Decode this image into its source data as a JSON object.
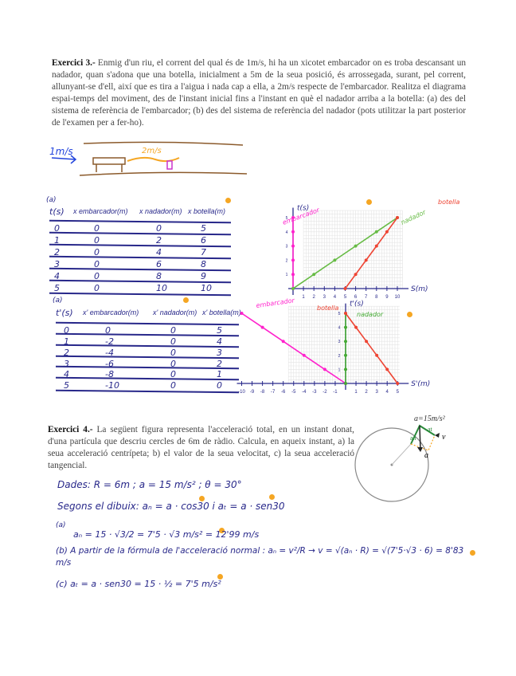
{
  "exercise3": {
    "label": "Exercici 3.-",
    "text": "Enmig d'un riu, el corrent del qual és de 1m/s, hi ha un xicotet embarcador on es troba descansant un nadador, quan s'adona que una botella, inicialment a 5m de la seua posició, és arrossegada, surant, pel corrent, allunyant-se d'ell, així que es tira a l'aigua i nada cap a ella, a 2m/s respecte de l'embarcador. Realitza el diagrama espai-temps del moviment, des de l'instant inicial fins a l'instant en què el nadador arriba a la botella: (a) des del sistema de referència de l'embarcador; (b) des del sistema de referència del nadador (pots utilitzar la part posterior de l'examen per a fer-ho).",
    "sketch": {
      "current_label": "1m/s",
      "swim_label": "2m/s"
    },
    "table_a": {
      "tag": "(a)",
      "headers": [
        "t(s)",
        "x embarcador(m)",
        "x nadador(m)",
        "x botella(m)"
      ],
      "rows": [
        [
          "0",
          "0",
          "0",
          "5"
        ],
        [
          "1",
          "0",
          "2",
          "6"
        ],
        [
          "2",
          "0",
          "4",
          "7"
        ],
        [
          "3",
          "0",
          "6",
          "8"
        ],
        [
          "4",
          "0",
          "8",
          "9"
        ],
        [
          "5",
          "0",
          "10",
          "10"
        ]
      ]
    },
    "table_b": {
      "tag": "(a)",
      "headers": [
        "t'(s)",
        "x' embarcador(m)",
        "x' nadador(m)",
        "x' botella(m)"
      ],
      "rows": [
        [
          "0",
          "0",
          "0",
          "5"
        ],
        [
          "1",
          "-2",
          "0",
          "4"
        ],
        [
          "2",
          "-4",
          "0",
          "3"
        ],
        [
          "3",
          "-6",
          "0",
          "2"
        ],
        [
          "4",
          "-8",
          "0",
          "1"
        ],
        [
          "5",
          "-10",
          "0",
          "0"
        ]
      ]
    }
  },
  "chart_data": [
    {
      "type": "line",
      "xlabel": "S(m)",
      "ylabel": "t(s)",
      "xlim": [
        0,
        10
      ],
      "ylim": [
        0,
        5
      ],
      "xticks": [
        "1",
        "2",
        "3",
        "4",
        "5",
        "6",
        "7",
        "8",
        "9",
        "10"
      ],
      "yticks": [
        "1",
        "2",
        "3",
        "4",
        "5"
      ],
      "grid": true,
      "series": [
        {
          "name": "embarcador",
          "color": "#ff22cc",
          "x": [
            0,
            0,
            0,
            0,
            0,
            0
          ],
          "y": [
            0,
            1,
            2,
            3,
            4,
            5
          ]
        },
        {
          "name": "nadador",
          "color": "#66bb44",
          "x": [
            0,
            2,
            4,
            6,
            8,
            10
          ],
          "y": [
            0,
            1,
            2,
            3,
            4,
            5
          ]
        },
        {
          "name": "botella",
          "color": "#ee4433",
          "x": [
            5,
            6,
            7,
            8,
            9,
            10
          ],
          "y": [
            0,
            1,
            2,
            3,
            4,
            5
          ]
        }
      ]
    },
    {
      "type": "line",
      "xlabel": "S'(m)",
      "ylabel": "t'(s)",
      "xlim": [
        -10,
        5
      ],
      "ylim": [
        0,
        5
      ],
      "xticks": [
        "-10",
        "-9",
        "-8",
        "-7",
        "-6",
        "-5",
        "-4",
        "-3",
        "-2",
        "-1",
        "1",
        "2",
        "3",
        "4",
        "5"
      ],
      "yticks": [
        "1",
        "2",
        "3",
        "4",
        "5"
      ],
      "grid": true,
      "series": [
        {
          "name": "embarcador",
          "color": "#ff22cc",
          "x": [
            0,
            -2,
            -4,
            -6,
            -8,
            -10
          ],
          "y": [
            0,
            1,
            2,
            3,
            4,
            5
          ]
        },
        {
          "name": "nadador",
          "color": "#44aa33",
          "x": [
            0,
            0,
            0,
            0,
            0,
            0
          ],
          "y": [
            0,
            1,
            2,
            3,
            4,
            5
          ]
        },
        {
          "name": "botella",
          "color": "#ee4433",
          "x": [
            5,
            4,
            3,
            2,
            1,
            0
          ],
          "y": [
            0,
            1,
            2,
            3,
            4,
            5
          ]
        }
      ]
    }
  ],
  "exercise4": {
    "label": "Exercici 4.-",
    "text": "La següent figura representa l'acceleració total, en un instant donat, d'una partícula que descriu cercles de 6m de ràdio. Calcula, en aqueix instant, a) la seua acceleració centrípeta; b) el valor de la seua velocitat, c) la seua acceleració tangencial.",
    "figure": {
      "accel_label": "a=15m/s²",
      "an_label": "an",
      "at_label": "at",
      "v_label": "v",
      "a_label": "a"
    },
    "solution": {
      "given": "Dades:  R = 6m ;  a = 15 m/s² ; θ = 30°",
      "drawing": "Segons el dibuix:    aₙ = a · cos30   i   aₜ = a · sen30",
      "part_a_tag": "(a)",
      "part_a": "aₙ = 15 · √3/2  =  7'5 · √3  m/s²  = 12'99 m/s",
      "part_b": "(b)  A partir de la fórmula de l'acceleració normal : aₙ = v²/R → v = √(aₙ · R) = √(7'5·√3 · 6) = 8'83 m/s",
      "part_c": "(c)     aₜ = a · sen30 = 15 · ½ = 7'5 m/s²"
    }
  },
  "colors": {
    "ink": "#28288a",
    "marker": "#f5a623",
    "embarcador": "#ff22cc",
    "nadador": "#66bb44",
    "botella": "#ee4433"
  }
}
